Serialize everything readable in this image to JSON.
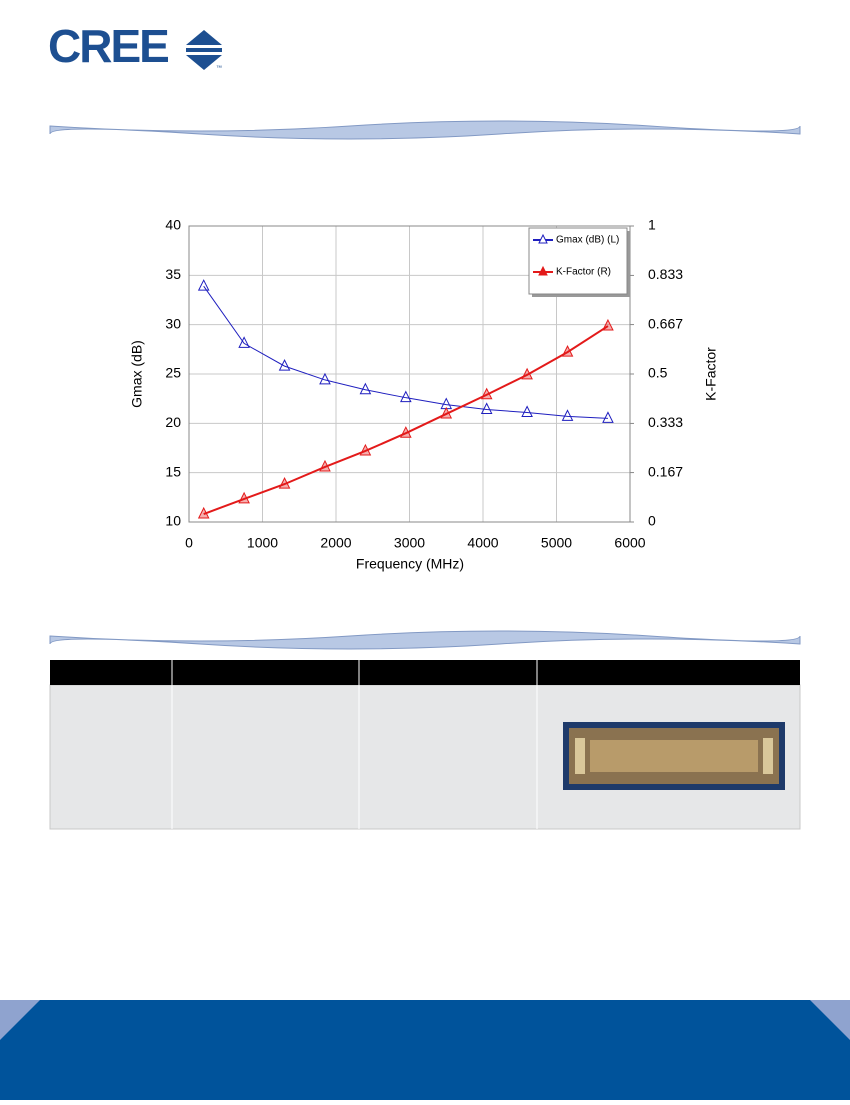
{
  "logo": {
    "text": "CREE",
    "tm": "™"
  },
  "chart_data": {
    "type": "line",
    "x_label": "Frequency (MHz)",
    "y_label": "Gmax (dB)",
    "y2_label": "K-Factor",
    "x": [
      200,
      750,
      1300,
      1850,
      2400,
      2950,
      3500,
      4050,
      4600,
      5150,
      5700
    ],
    "series": [
      {
        "name": "Gmax (dB) (L)",
        "color": "#1f1fbf",
        "values": [
          33.9,
          28.1,
          25.8,
          24.4,
          23.4,
          22.6,
          21.9,
          21.4,
          21.1,
          20.7,
          20.5
        ]
      },
      {
        "name": "K-Factor (R)",
        "color": "#e31a1a",
        "axis": "y2",
        "values": [
          0.027,
          0.078,
          0.128,
          0.186,
          0.24,
          0.3,
          0.365,
          0.43,
          0.497,
          0.574,
          0.662
        ]
      }
    ],
    "xlim": [
      0,
      6000
    ],
    "xticks": [
      0,
      1000,
      2000,
      3000,
      4000,
      5000,
      6000
    ],
    "ylim": [
      10,
      40
    ],
    "yticks": [
      10,
      15,
      20,
      25,
      30,
      35,
      40
    ],
    "y2lim": [
      0,
      1
    ],
    "y2ticks": [
      0,
      0.167,
      0.333,
      0.5,
      0.667,
      0.833,
      1
    ],
    "grid": true,
    "legend": "top-right"
  }
}
